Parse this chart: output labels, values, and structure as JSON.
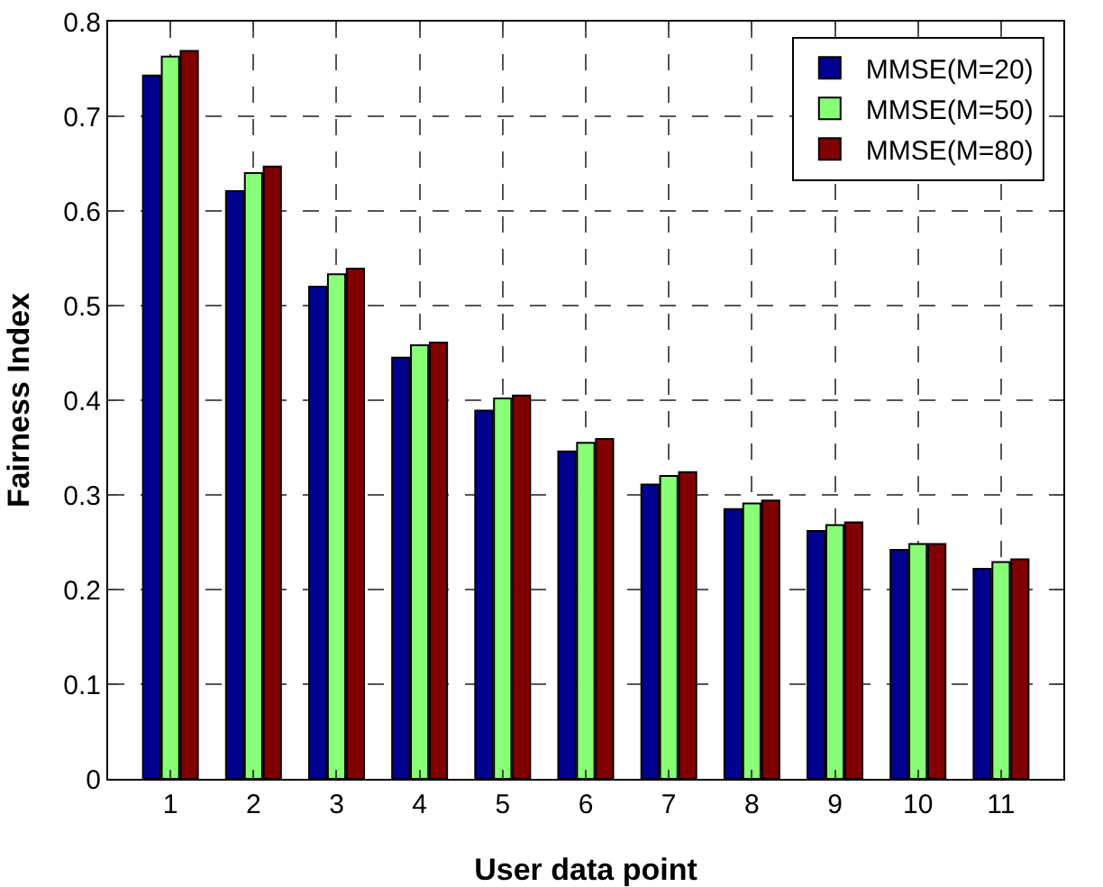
{
  "chart_data": {
    "type": "bar",
    "xlabel": "User data point",
    "ylabel": "Fairness Index",
    "categories": [
      "1",
      "2",
      "3",
      "4",
      "5",
      "6",
      "7",
      "8",
      "9",
      "10",
      "11"
    ],
    "series": [
      {
        "name": "MMSE(M=20)",
        "color": "#000090",
        "values": [
          0.743,
          0.621,
          0.52,
          0.445,
          0.389,
          0.346,
          0.311,
          0.285,
          0.262,
          0.242,
          0.222
        ]
      },
      {
        "name": "MMSE(M=50)",
        "color": "#88ff77",
        "values": [
          0.763,
          0.64,
          0.533,
          0.458,
          0.402,
          0.355,
          0.32,
          0.291,
          0.268,
          0.248,
          0.229
        ]
      },
      {
        "name": "MMSE(M=80)",
        "color": "#800000",
        "values": [
          0.769,
          0.647,
          0.539,
          0.461,
          0.405,
          0.359,
          0.324,
          0.294,
          0.271,
          0.248,
          0.232
        ]
      }
    ],
    "ylim": [
      0,
      0.8
    ],
    "yticks": [
      0,
      0.1,
      0.2,
      0.3,
      0.4,
      0.5,
      0.6,
      0.7,
      0.8
    ],
    "grid": true,
    "legend": "top right"
  }
}
